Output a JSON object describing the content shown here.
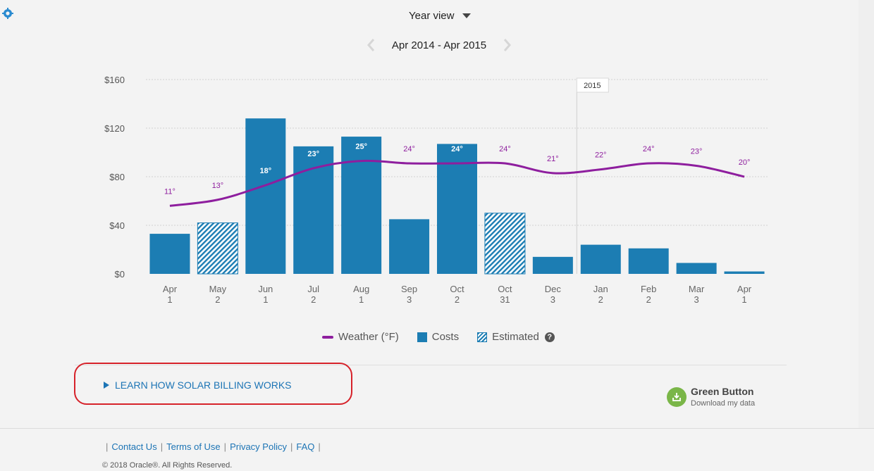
{
  "view_select": {
    "label": "Year view"
  },
  "range": {
    "label": "Apr 2014 - Apr 2015"
  },
  "chart_data": {
    "type": "bar",
    "categories": [
      {
        "month": "Apr",
        "day": "1"
      },
      {
        "month": "May",
        "day": "2"
      },
      {
        "month": "Jun",
        "day": "1"
      },
      {
        "month": "Jul",
        "day": "2"
      },
      {
        "month": "Aug",
        "day": "1"
      },
      {
        "month": "Sep",
        "day": "3"
      },
      {
        "month": "Oct",
        "day": "2"
      },
      {
        "month": "Oct",
        "day": "31"
      },
      {
        "month": "Dec",
        "day": "3"
      },
      {
        "month": "Jan",
        "day": "2"
      },
      {
        "month": "Feb",
        "day": "2"
      },
      {
        "month": "Mar",
        "day": "3"
      },
      {
        "month": "Apr",
        "day": "1"
      }
    ],
    "series": [
      {
        "name": "Costs",
        "values": [
          33,
          42,
          128,
          105,
          113,
          45,
          107,
          50,
          14,
          24,
          21,
          9,
          2
        ],
        "estimated": [
          false,
          true,
          false,
          false,
          false,
          false,
          false,
          true,
          false,
          false,
          false,
          false,
          false
        ]
      },
      {
        "name": "Weather (°F)",
        "labels": [
          "11°",
          "13°",
          "18°",
          "23°",
          "25°",
          "24°",
          "24°",
          "24°",
          "21°",
          "22°",
          "24°",
          "23°",
          "20°"
        ],
        "line_values": [
          56,
          61,
          73,
          87,
          93,
          91,
          91,
          91,
          83,
          86,
          91,
          89,
          80
        ]
      }
    ],
    "yticks": [
      "$0",
      "$40",
      "$80",
      "$120",
      "$160"
    ],
    "ylim": [
      0,
      160
    ],
    "marker": {
      "label": "2015"
    },
    "grid": true,
    "legend": [
      {
        "name": "Weather (°F)"
      },
      {
        "name": "Costs"
      },
      {
        "name": "Estimated"
      }
    ],
    "colors": {
      "bar": "#1c7db3",
      "line": "#8e1e9e",
      "estimated_bg": "#ffffff"
    }
  },
  "legend": {
    "weather": "Weather (°F)",
    "costs": "Costs",
    "estimated": "Estimated",
    "help": "?"
  },
  "solar": {
    "label": "LEARN HOW SOLAR BILLING WORKS"
  },
  "green_button": {
    "title": "Green Button",
    "subtitle": "Download my data"
  },
  "footer": {
    "links": [
      "Contact Us",
      "Terms of Use",
      "Privacy Policy",
      "FAQ"
    ],
    "separator": "|",
    "copyright": "© 2018 Oracle®. All Rights Reserved."
  }
}
